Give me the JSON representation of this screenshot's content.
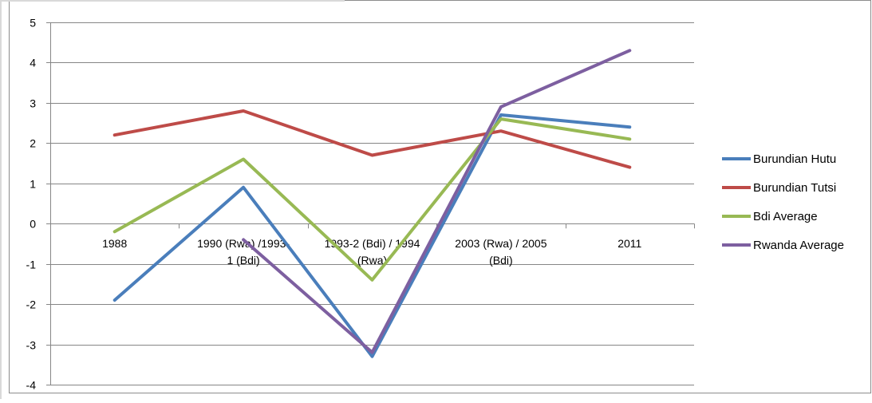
{
  "chart_data": {
    "type": "line",
    "title": "",
    "xlabel": "",
    "ylabel": "",
    "categories": [
      "1988",
      "1990 (Rwa) /1993-1 (Bdi)",
      "1993-2 (Bdi) / 1994 (Rwa)",
      "2003 (Rwa) / 2005 (Bdi)",
      "2011"
    ],
    "category_label_lines": [
      [
        "1988"
      ],
      [
        "1990 (Rwa) /1993-",
        "1 (Bdi)"
      ],
      [
        "1993-2 (Bdi) / 1994",
        "(Rwa)"
      ],
      [
        "2003 (Rwa) / 2005",
        "(Bdi)"
      ],
      [
        "2011"
      ]
    ],
    "ylim": [
      -4,
      5
    ],
    "yticks": [
      "-4",
      "-3",
      "-2",
      "-1",
      "0",
      "1",
      "2",
      "3",
      "4",
      "5"
    ],
    "grid": true,
    "legend_position": "right",
    "series": [
      {
        "name": "Burundian Hutu",
        "color": "#4A7EBB",
        "values": [
          -1.9,
          0.9,
          -3.3,
          2.7,
          2.4
        ]
      },
      {
        "name": "Burundian Tutsi",
        "color": "#BE4B48",
        "values": [
          2.2,
          2.8,
          1.7,
          2.3,
          1.4
        ]
      },
      {
        "name": "Bdi Average",
        "color": "#98B954",
        "values": [
          -0.2,
          1.6,
          -1.4,
          2.6,
          2.1
        ]
      },
      {
        "name": "Rwanda Average",
        "color": "#7D5FA0",
        "values": [
          null,
          -0.4,
          -3.2,
          2.9,
          4.3
        ]
      }
    ]
  }
}
